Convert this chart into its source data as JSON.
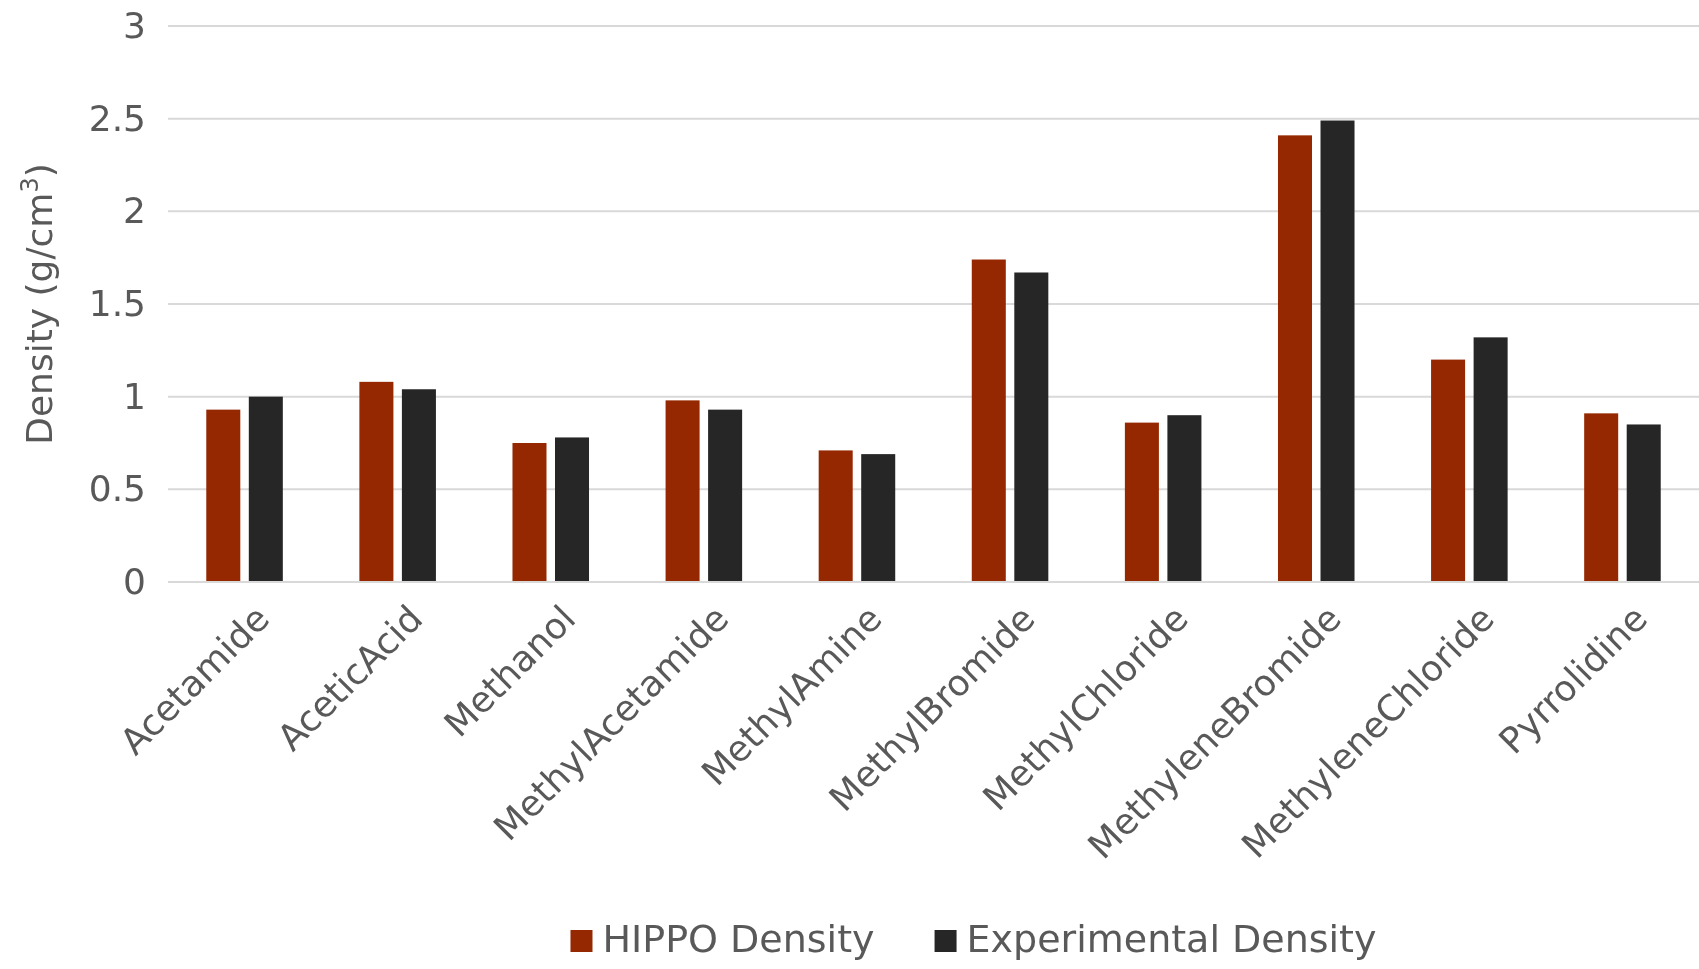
{
  "chart_data": {
    "type": "bar",
    "ylabel": "Density (g/cm$^{3}$)",
    "categories": [
      "Acetamide",
      "AceticAcid",
      "Methanol",
      "MethylAcetamide",
      "MethylAmine",
      "MethylBromide",
      "MethylChloride",
      "MethyleneBromide",
      "MethyleneChloride",
      "Pyrrolidine"
    ],
    "series": [
      {
        "name": "HIPPO Density",
        "color": "#952800",
        "values": [
          0.93,
          1.08,
          0.75,
          0.98,
          0.71,
          1.74,
          0.86,
          2.41,
          1.2,
          0.91
        ]
      },
      {
        "name": "Experimental Density",
        "color": "#262626",
        "values": [
          1.0,
          1.04,
          0.78,
          0.93,
          0.69,
          1.67,
          0.9,
          2.49,
          1.32,
          0.85
        ]
      }
    ],
    "ylim": [
      0,
      3
    ],
    "yticks": [
      0,
      0.5,
      1,
      1.5,
      2,
      2.5,
      3
    ],
    "grid": "y",
    "legend": "bottom"
  }
}
